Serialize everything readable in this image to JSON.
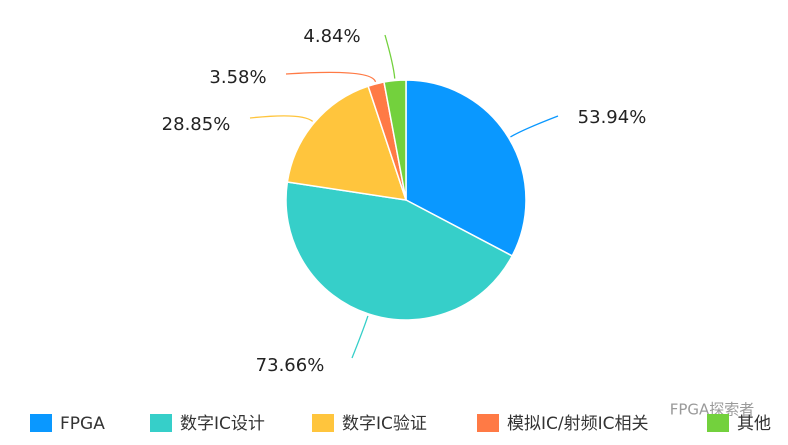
{
  "chart_data": {
    "type": "pie",
    "categories": [
      "FPGA",
      "数字IC设计",
      "数字IC验证",
      "模拟IC/射频IC相关",
      "其他"
    ],
    "values": [
      53.94,
      73.66,
      28.85,
      3.58,
      4.84
    ],
    "value_labels": [
      "53.94%",
      "73.66%",
      "28.85%",
      "3.58%",
      "4.84%"
    ],
    "colors": [
      "#0a98ff",
      "#36cfc9",
      "#ffc53d",
      "#ff7a45",
      "#73d13d"
    ],
    "legend": "bottom",
    "watermark": "FPGA探索者"
  }
}
